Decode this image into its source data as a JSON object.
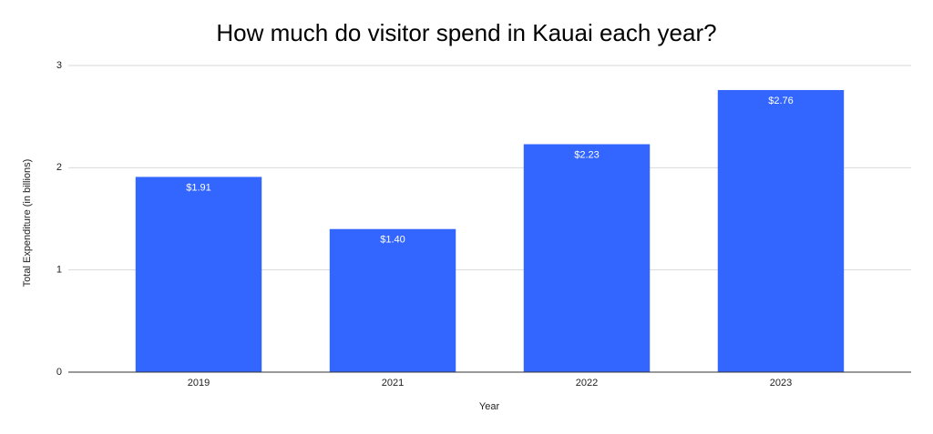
{
  "chart_data": {
    "type": "bar",
    "title": "How much do visitor spend in Kauai each year?",
    "x_label": "Year",
    "y_label": "Total Expenditure (in billions)",
    "categories": [
      "2019",
      "2021",
      "2022",
      "2023"
    ],
    "values": [
      1.91,
      1.4,
      2.23,
      2.76
    ],
    "value_labels": [
      "$1.91",
      "$1.40",
      "$2.23",
      "$2.76"
    ],
    "color": "#3366ff",
    "ylim": [
      0,
      3
    ],
    "yticks": [
      0,
      1,
      2,
      3
    ],
    "grid": true
  }
}
